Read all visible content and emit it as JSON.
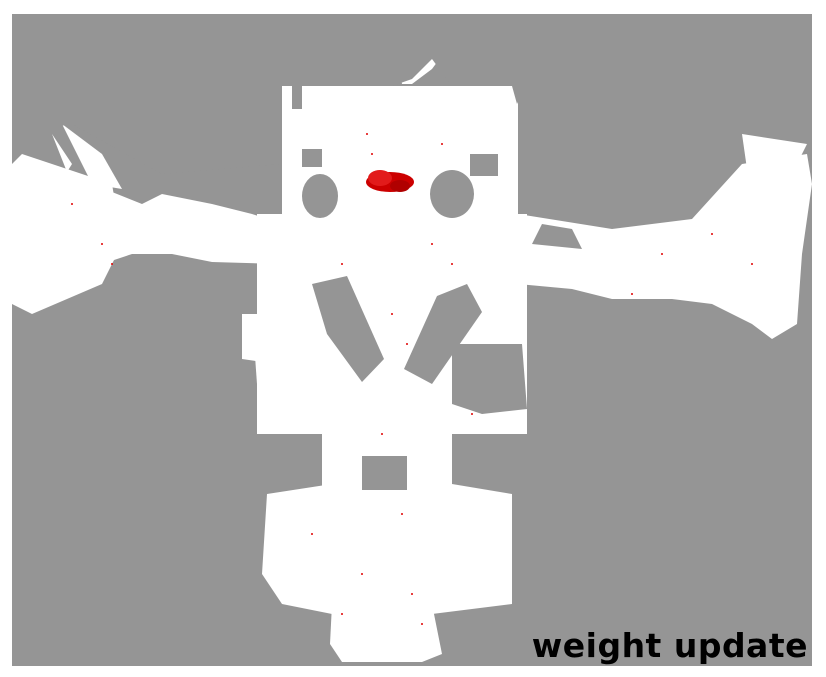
{
  "map": {
    "caption": "weight update",
    "colors": {
      "unknown": "#959595",
      "free_space": "#ffffff",
      "particles": "#e00000",
      "particle_cluster": "#d40000"
    }
  }
}
